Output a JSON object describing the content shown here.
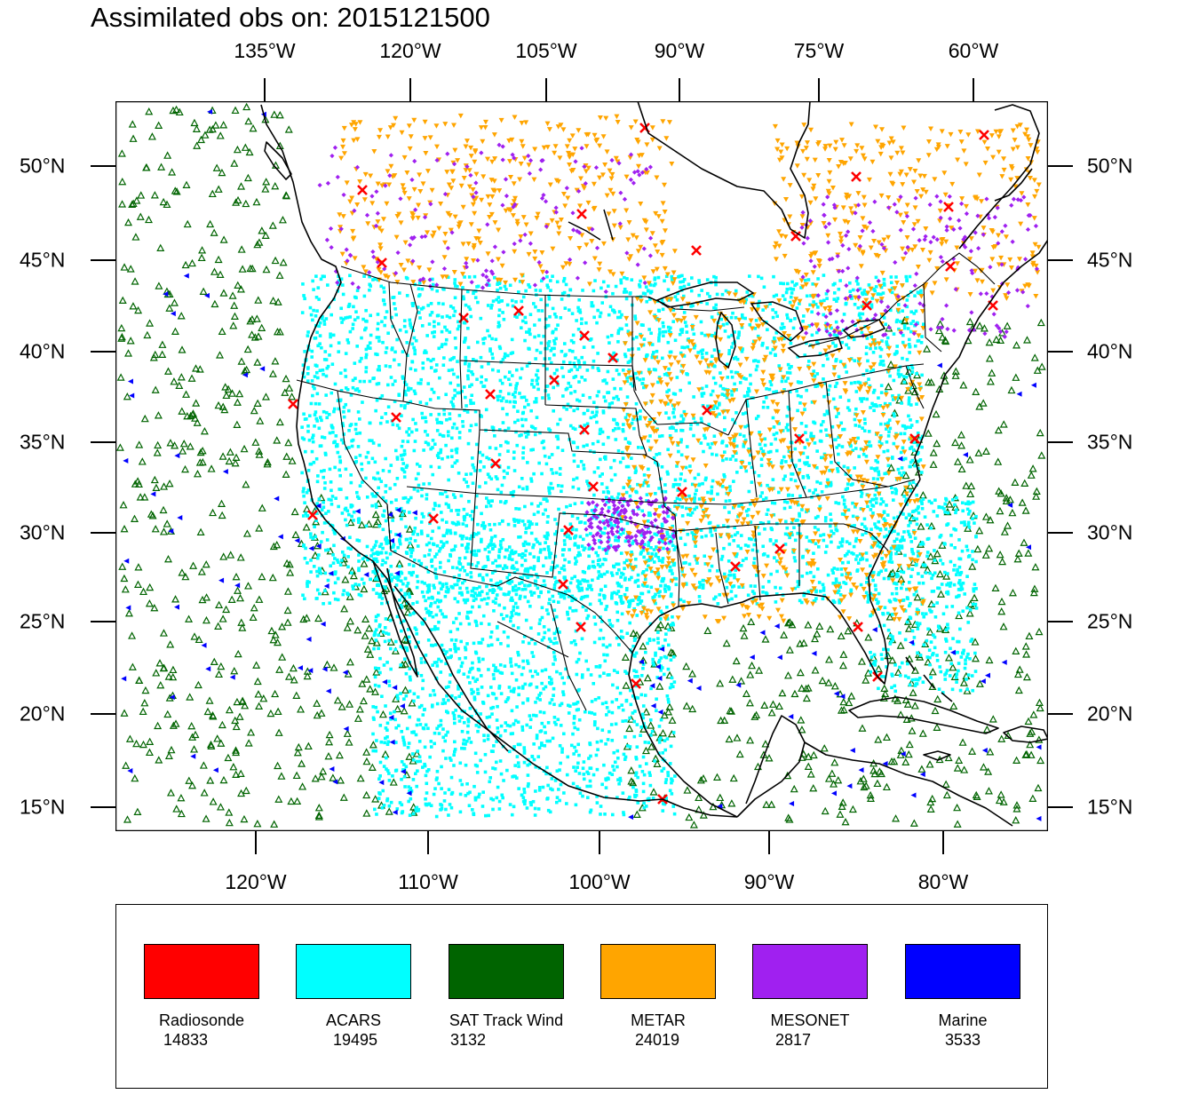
{
  "title": "Assimilated obs on: 2015121500",
  "top_lon_labels": [
    "135°W",
    "120°W",
    "105°W",
    "90°W",
    "75°W",
    "60°W"
  ],
  "bottom_lon_labels": [
    "120°W",
    "110°W",
    "100°W",
    "90°W",
    "80°W"
  ],
  "lat_labels": [
    "50°N",
    "45°N",
    "40°N",
    "35°N",
    "30°N",
    "25°N",
    "20°N",
    "15°N"
  ],
  "legend": [
    {
      "name": "Radiosonde",
      "count": "14833",
      "color": "#ff0000",
      "marker": "x-cross"
    },
    {
      "name": "ACARS",
      "count": "19495",
      "color": "#00ffff",
      "marker": "square"
    },
    {
      "name": "SAT Track Wind",
      "count": "3132",
      "color": "#006400",
      "marker": "triangle-up"
    },
    {
      "name": "METAR",
      "count": "24019",
      "color": "#ffa500",
      "marker": "triangle-down"
    },
    {
      "name": "MESONET",
      "count": "2817",
      "color": "#a020f0",
      "marker": "diamond"
    },
    {
      "name": "Marine",
      "count": "3533",
      "color": "#0000ff",
      "marker": "triangle-left"
    }
  ]
}
